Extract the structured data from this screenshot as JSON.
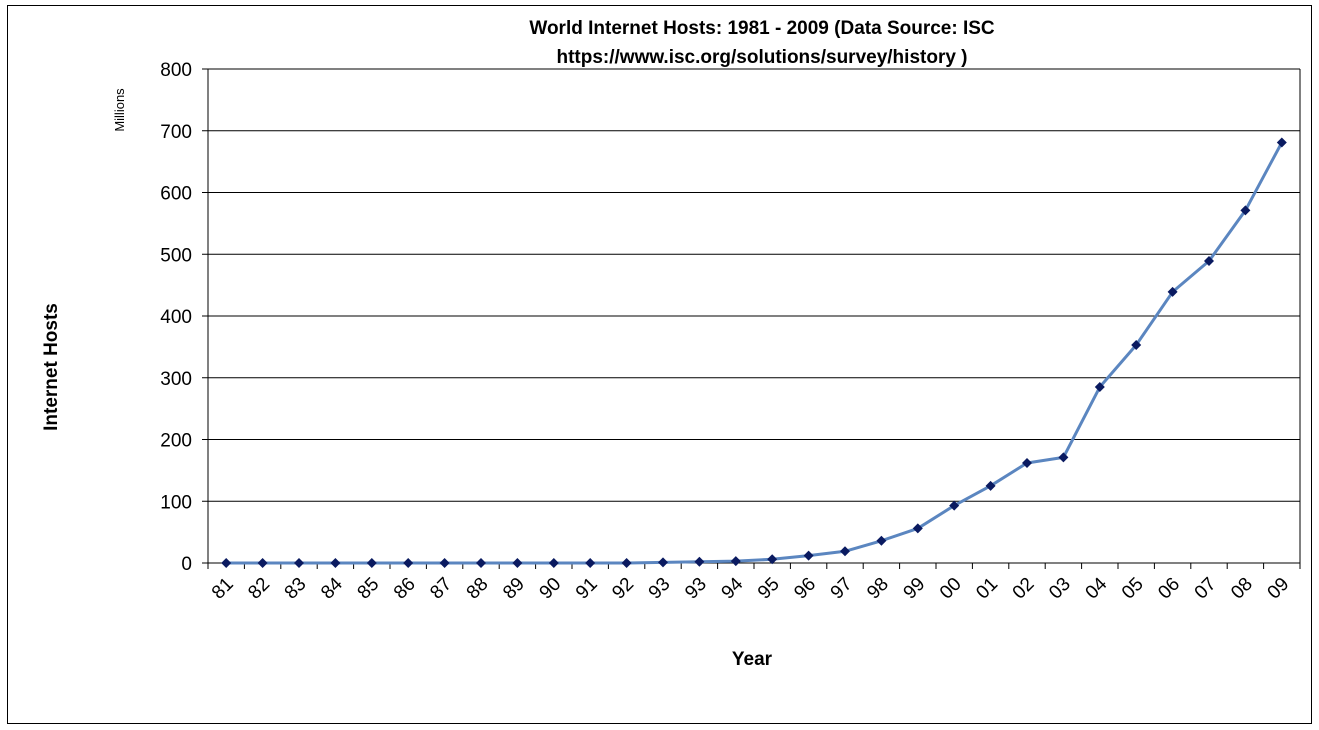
{
  "chart_data": {
    "type": "line",
    "title": "World Internet Hosts: 1981 - 2009 (Data Source: ISC",
    "subtitle": "https://www.isc.org/solutions/survey/history )",
    "xlabel": "Year",
    "ylabel": "Internet Hosts",
    "units_label": "Millions",
    "ylim": [
      0,
      800
    ],
    "yticks": [
      "0",
      "100",
      "200",
      "300",
      "400",
      "500",
      "600",
      "700",
      "800"
    ],
    "grid": true,
    "legend": "none",
    "categories": [
      "81",
      "82",
      "83",
      "84",
      "85",
      "86",
      "87",
      "88",
      "89",
      "90",
      "91",
      "92",
      "93",
      "93",
      "94",
      "95",
      "96",
      "97",
      "98",
      "99",
      "00",
      "01",
      "02",
      "03",
      "04",
      "05",
      "06",
      "07",
      "08",
      "09"
    ],
    "series": [
      {
        "values": [
          0,
          0,
          0,
          0,
          0,
          0,
          0,
          0,
          0,
          0,
          0,
          0,
          1,
          2,
          3,
          6,
          12,
          19,
          36,
          56,
          93,
          125,
          162,
          171,
          285,
          353,
          439,
          489,
          571,
          681
        ]
      }
    ],
    "colors": {
      "line": "#5b86c0",
      "marker": "#0a1a60",
      "grid": "#000000"
    }
  }
}
